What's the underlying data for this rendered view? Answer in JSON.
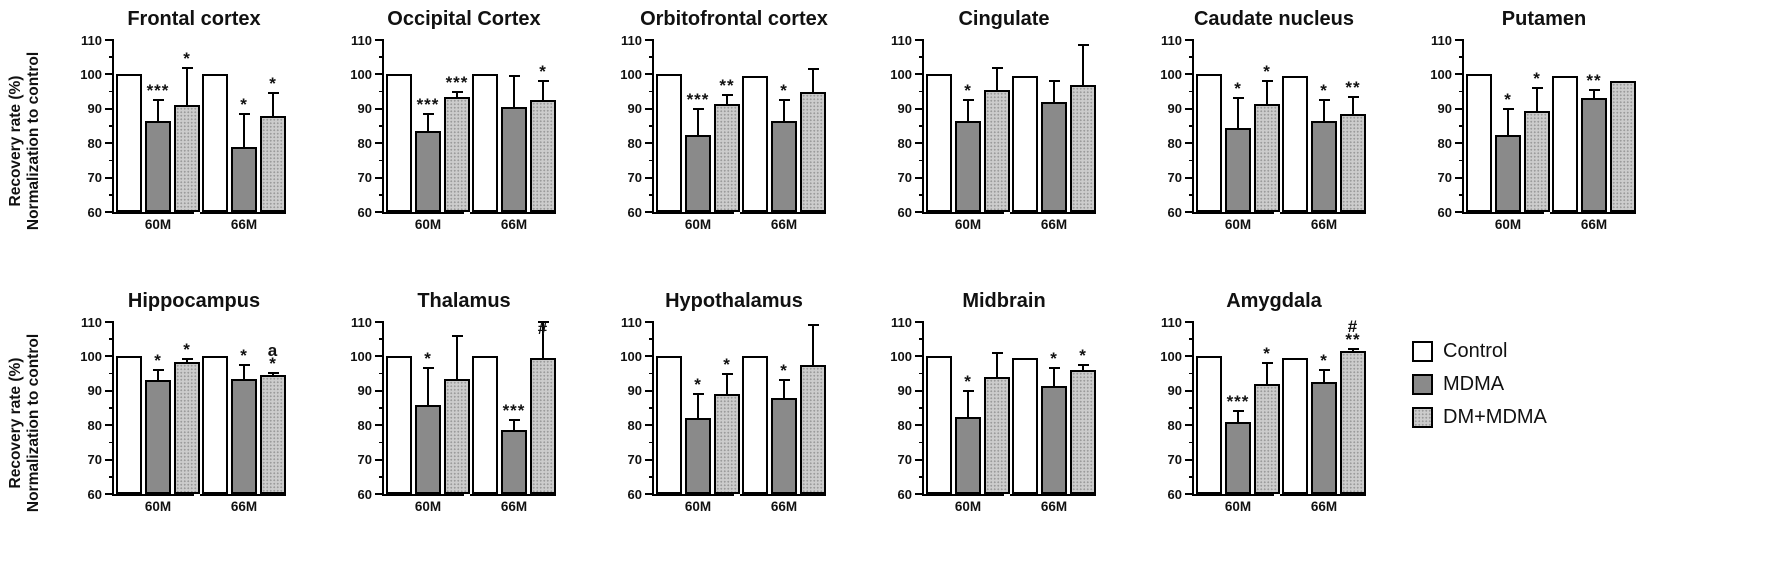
{
  "figure": {
    "y_axis_label": {
      "line1": "Recovery rate (%)",
      "line2": "Normalization to control"
    },
    "y_ticks": [
      60,
      70,
      80,
      90,
      100,
      110
    ],
    "y_minor_ticks": [
      65,
      75,
      85,
      95,
      105
    ],
    "y_min": 60,
    "y_max": 110,
    "group_labels": [
      "60M",
      "66M"
    ],
    "colors": {
      "control_fill": "#ffffff",
      "mdma_fill": "#8a8a8a",
      "dm_mdma_fill": "#cccccc",
      "axis": "#000000"
    },
    "legend": {
      "items": [
        {
          "label": "Control"
        },
        {
          "label": "MDMA"
        },
        {
          "label": "DM+MDMA"
        }
      ]
    }
  },
  "chart_data": [
    {
      "type": "bar",
      "title": "Frontal cortex",
      "ylim": [
        60,
        110
      ],
      "groups": [
        {
          "label": "60M",
          "bars": [
            {
              "series": "Control",
              "value": 100,
              "err_top": 100,
              "sig": ""
            },
            {
              "series": "MDMA",
              "value": 86.5,
              "err_top": 92.5,
              "sig": "***"
            },
            {
              "series": "DM+MDMA",
              "value": 91,
              "err_top": 102,
              "sig": "*"
            }
          ]
        },
        {
          "label": "66M",
          "bars": [
            {
              "series": "Control",
              "value": 100,
              "err_top": 100,
              "sig": ""
            },
            {
              "series": "MDMA",
              "value": 79,
              "err_top": 88.5,
              "sig": "*"
            },
            {
              "series": "DM+MDMA",
              "value": 88,
              "err_top": 94.5,
              "sig": "*"
            }
          ]
        }
      ]
    },
    {
      "type": "bar",
      "title": "Occipital Cortex",
      "ylim": [
        60,
        110
      ],
      "groups": [
        {
          "label": "60M",
          "bars": [
            {
              "series": "Control",
              "value": 100,
              "err_top": 100,
              "sig": ""
            },
            {
              "series": "MDMA",
              "value": 83.5,
              "err_top": 88.5,
              "sig": "***"
            },
            {
              "series": "DM+MDMA",
              "value": 93.5,
              "err_top": 95,
              "sig": "***"
            }
          ]
        },
        {
          "label": "66M",
          "bars": [
            {
              "series": "Control",
              "value": 100,
              "err_top": 100,
              "sig": ""
            },
            {
              "series": "MDMA",
              "value": 90.5,
              "err_top": 99.5,
              "sig": ""
            },
            {
              "series": "DM+MDMA",
              "value": 92.5,
              "err_top": 98,
              "sig": "*"
            }
          ]
        }
      ]
    },
    {
      "type": "bar",
      "title": "Orbitofrontal  cortex",
      "ylim": [
        60,
        110
      ],
      "groups": [
        {
          "label": "60M",
          "bars": [
            {
              "series": "Control",
              "value": 100,
              "err_top": 100,
              "sig": ""
            },
            {
              "series": "MDMA",
              "value": 82.5,
              "err_top": 90,
              "sig": "***"
            },
            {
              "series": "DM+MDMA",
              "value": 91.5,
              "err_top": 94,
              "sig": "**"
            }
          ]
        },
        {
          "label": "66M",
          "bars": [
            {
              "series": "Control",
              "value": 99.5,
              "err_top": 99.5,
              "sig": ""
            },
            {
              "series": "MDMA",
              "value": 86.5,
              "err_top": 92.5,
              "sig": "*"
            },
            {
              "series": "DM+MDMA",
              "value": 95,
              "err_top": 101.5,
              "sig": ""
            }
          ]
        }
      ]
    },
    {
      "type": "bar",
      "title": "Cingulate",
      "ylim": [
        60,
        110
      ],
      "groups": [
        {
          "label": "60M",
          "bars": [
            {
              "series": "Control",
              "value": 100,
              "err_top": 100,
              "sig": ""
            },
            {
              "series": "MDMA",
              "value": 86.5,
              "err_top": 92.5,
              "sig": "*"
            },
            {
              "series": "DM+MDMA",
              "value": 95.5,
              "err_top": 102,
              "sig": ""
            }
          ]
        },
        {
          "label": "66M",
          "bars": [
            {
              "series": "Control",
              "value": 99.5,
              "err_top": 99.5,
              "sig": ""
            },
            {
              "series": "MDMA",
              "value": 92,
              "err_top": 98,
              "sig": ""
            },
            {
              "series": "DM+MDMA",
              "value": 97,
              "err_top": 108.5,
              "sig": ""
            }
          ]
        }
      ]
    },
    {
      "type": "bar",
      "title": "Caudate nucleus",
      "ylim": [
        60,
        110
      ],
      "groups": [
        {
          "label": "60M",
          "bars": [
            {
              "series": "Control",
              "value": 100,
              "err_top": 100,
              "sig": ""
            },
            {
              "series": "MDMA",
              "value": 84.5,
              "err_top": 93,
              "sig": "*"
            },
            {
              "series": "DM+MDMA",
              "value": 91.5,
              "err_top": 98,
              "sig": "*"
            }
          ]
        },
        {
          "label": "66M",
          "bars": [
            {
              "series": "Control",
              "value": 99.5,
              "err_top": 99.5,
              "sig": ""
            },
            {
              "series": "MDMA",
              "value": 86.5,
              "err_top": 92.5,
              "sig": "*"
            },
            {
              "series": "DM+MDMA",
              "value": 88.5,
              "err_top": 93.5,
              "sig": "**"
            }
          ]
        }
      ]
    },
    {
      "type": "bar",
      "title": "Putamen",
      "ylim": [
        60,
        110
      ],
      "groups": [
        {
          "label": "60M",
          "bars": [
            {
              "series": "Control",
              "value": 100,
              "err_top": 100,
              "sig": ""
            },
            {
              "series": "MDMA",
              "value": 82.5,
              "err_top": 90,
              "sig": "*"
            },
            {
              "series": "DM+MDMA",
              "value": 89.5,
              "err_top": 96,
              "sig": "*"
            }
          ]
        },
        {
          "label": "66M",
          "bars": [
            {
              "series": "Control",
              "value": 99.5,
              "err_top": 99.5,
              "sig": ""
            },
            {
              "series": "MDMA",
              "value": 93,
              "err_top": 95.5,
              "sig": "**"
            },
            {
              "series": "DM+MDMA",
              "value": 98,
              "err_top": 98,
              "sig": ""
            }
          ]
        }
      ]
    },
    {
      "type": "bar",
      "title": "Hippocampus",
      "ylim": [
        60,
        110
      ],
      "groups": [
        {
          "label": "60M",
          "bars": [
            {
              "series": "Control",
              "value": 100,
              "err_top": 100,
              "sig": ""
            },
            {
              "series": "MDMA",
              "value": 93,
              "err_top": 96,
              "sig": "*"
            },
            {
              "series": "DM+MDMA",
              "value": 98.5,
              "err_top": 99.2,
              "sig": "*"
            }
          ]
        },
        {
          "label": "66M",
          "bars": [
            {
              "series": "Control",
              "value": 100,
              "err_top": 100,
              "sig": ""
            },
            {
              "series": "MDMA",
              "value": 93.5,
              "err_top": 97.5,
              "sig": "*"
            },
            {
              "series": "DM+MDMA",
              "value": 94.5,
              "err_top": 95.2,
              "sig": "a\n*"
            }
          ]
        }
      ]
    },
    {
      "type": "bar",
      "title": "Thalamus",
      "ylim": [
        60,
        110
      ],
      "groups": [
        {
          "label": "60M",
          "bars": [
            {
              "series": "Control",
              "value": 100,
              "err_top": 100,
              "sig": ""
            },
            {
              "series": "MDMA",
              "value": 86,
              "err_top": 96.5,
              "sig": "*"
            },
            {
              "series": "DM+MDMA",
              "value": 93.5,
              "err_top": 106,
              "sig": ""
            }
          ]
        },
        {
          "label": "66M",
          "bars": [
            {
              "series": "Control",
              "value": 100,
              "err_top": 100,
              "sig": ""
            },
            {
              "series": "MDMA",
              "value": 78.5,
              "err_top": 81.5,
              "sig": "***"
            },
            {
              "series": "DM+MDMA",
              "value": 99.5,
              "err_top": 110,
              "sig": "#"
            }
          ]
        }
      ]
    },
    {
      "type": "bar",
      "title": "Hypothalamus",
      "ylim": [
        60,
        110
      ],
      "groups": [
        {
          "label": "60M",
          "bars": [
            {
              "series": "Control",
              "value": 100,
              "err_top": 100,
              "sig": ""
            },
            {
              "series": "MDMA",
              "value": 82,
              "err_top": 89,
              "sig": "*"
            },
            {
              "series": "DM+MDMA",
              "value": 89,
              "err_top": 95,
              "sig": "*"
            }
          ]
        },
        {
          "label": "66M",
          "bars": [
            {
              "series": "Control",
              "value": 100,
              "err_top": 100,
              "sig": ""
            },
            {
              "series": "MDMA",
              "value": 88,
              "err_top": 93,
              "sig": "*"
            },
            {
              "series": "DM+MDMA",
              "value": 97.5,
              "err_top": 109,
              "sig": ""
            }
          ]
        }
      ]
    },
    {
      "type": "bar",
      "title": "Midbrain",
      "ylim": [
        60,
        110
      ],
      "groups": [
        {
          "label": "60M",
          "bars": [
            {
              "series": "Control",
              "value": 100,
              "err_top": 100,
              "sig": ""
            },
            {
              "series": "MDMA",
              "value": 82.5,
              "err_top": 90,
              "sig": "*"
            },
            {
              "series": "DM+MDMA",
              "value": 94,
              "err_top": 101,
              "sig": ""
            }
          ]
        },
        {
          "label": "66M",
          "bars": [
            {
              "series": "Control",
              "value": 99.5,
              "err_top": 99.5,
              "sig": ""
            },
            {
              "series": "MDMA",
              "value": 91.5,
              "err_top": 96.5,
              "sig": "*"
            },
            {
              "series": "DM+MDMA",
              "value": 96,
              "err_top": 97.5,
              "sig": "*"
            }
          ]
        }
      ]
    },
    {
      "type": "bar",
      "title": "Amygdala",
      "ylim": [
        60,
        110
      ],
      "groups": [
        {
          "label": "60M",
          "bars": [
            {
              "series": "Control",
              "value": 100,
              "err_top": 100,
              "sig": ""
            },
            {
              "series": "MDMA",
              "value": 81,
              "err_top": 84,
              "sig": "***"
            },
            {
              "series": "DM+MDMA",
              "value": 92,
              "err_top": 98,
              "sig": "*"
            }
          ]
        },
        {
          "label": "66M",
          "bars": [
            {
              "series": "Control",
              "value": 99.5,
              "err_top": 99.5,
              "sig": ""
            },
            {
              "series": "MDMA",
              "value": 92.5,
              "err_top": 96,
              "sig": "*"
            },
            {
              "series": "DM+MDMA",
              "value": 101.5,
              "err_top": 102.2,
              "sig": "#\n**"
            }
          ]
        }
      ]
    }
  ]
}
